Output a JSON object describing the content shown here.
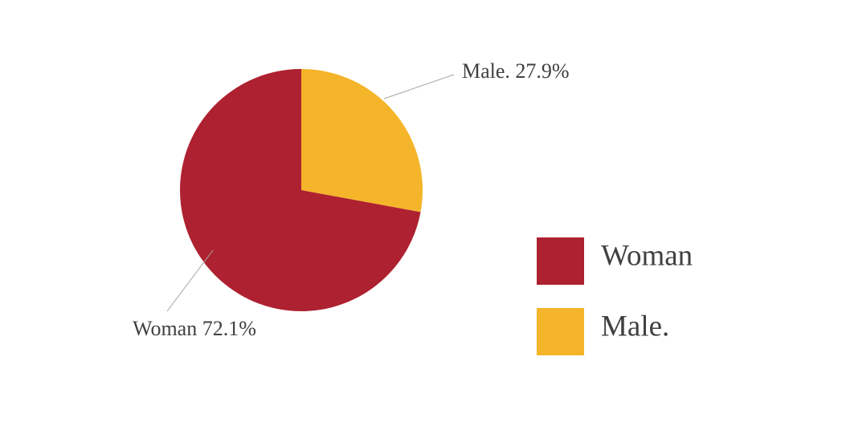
{
  "chart_data": {
    "type": "pie",
    "categories": [
      "Woman",
      "Male."
    ],
    "values": [
      72.1,
      27.9
    ],
    "value_labels": [
      "Woman 72.1%",
      "Male. 27.9%"
    ],
    "colors": [
      "#ae2130",
      "#f5b52a"
    ]
  }
}
